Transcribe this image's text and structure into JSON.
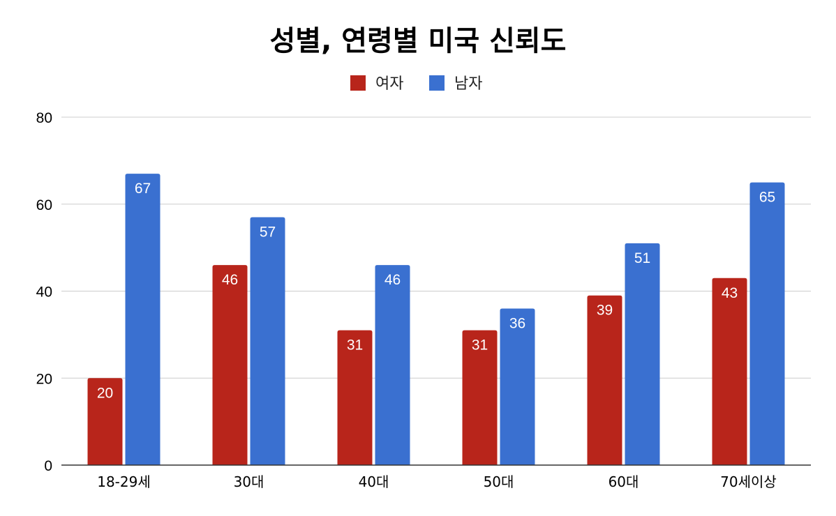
{
  "chart_data": {
    "type": "bar",
    "title": "성별, 연령별 미국 신뢰도",
    "xlabel": "",
    "ylabel": "",
    "ylim": [
      0,
      80
    ],
    "yticks": [
      "0",
      "20",
      "40",
      "60",
      "80"
    ],
    "grid": true,
    "legend_position": "top",
    "categories": [
      "18-29세",
      "30대",
      "40대",
      "50대",
      "60대",
      "70세이상"
    ],
    "series": [
      {
        "name": "여자",
        "color": "#b8251b",
        "values": [
          20,
          46,
          31,
          31,
          39,
          43
        ]
      },
      {
        "name": "남자",
        "color": "#3a70d0",
        "values": [
          67,
          57,
          46,
          36,
          51,
          65
        ]
      }
    ]
  }
}
